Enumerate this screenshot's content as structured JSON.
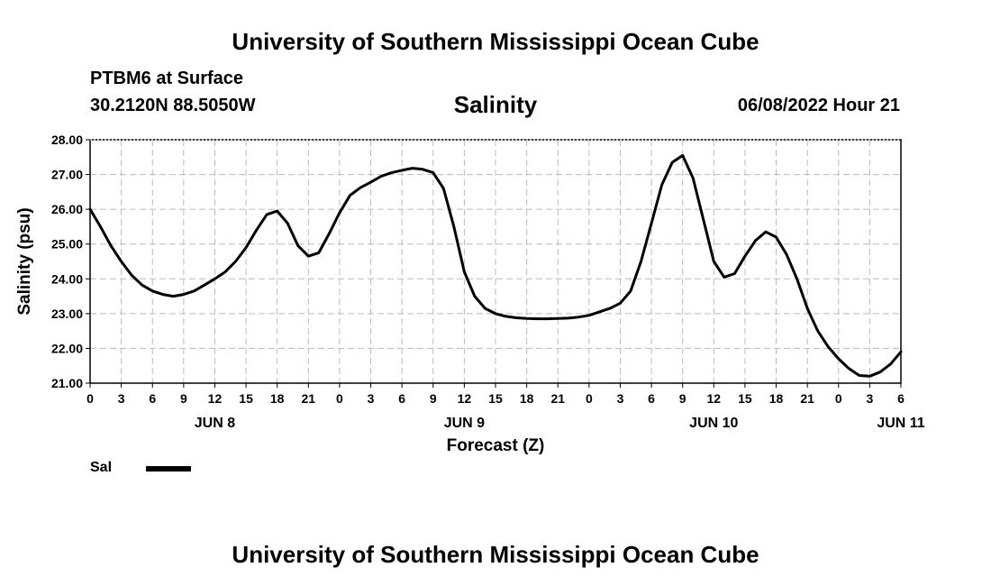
{
  "header": {
    "title": "University of Southern Mississippi Ocean Cube",
    "station": "PTBM6 at Surface",
    "coords": "30.2120N  88.5050W",
    "datetime": "06/08/2022 Hour 21",
    "footer_title": "University of Southern Mississippi Ocean Cube"
  },
  "chart_data": {
    "type": "line",
    "title": "Salinity",
    "xlabel": "Forecast (Z)",
    "ylabel": "Salinity (psu)",
    "ylim": [
      21.0,
      28.0
    ],
    "xlim": [
      0,
      78
    ],
    "yticks": [
      "21.00",
      "22.00",
      "23.00",
      "24.00",
      "25.00",
      "26.00",
      "27.00",
      "28.00"
    ],
    "xticks": [
      "0",
      "3",
      "6",
      "9",
      "12",
      "15",
      "18",
      "21",
      "0",
      "3",
      "6",
      "9",
      "12",
      "15",
      "18",
      "21",
      "0",
      "3",
      "6",
      "9",
      "12",
      "15",
      "18",
      "21",
      "0",
      "3",
      "6"
    ],
    "day_labels": [
      {
        "label": "JUN 8",
        "at": 12
      },
      {
        "label": "JUN 9",
        "at": 36
      },
      {
        "label": "JUN 10",
        "at": 60
      },
      {
        "label": "JUN 11",
        "at": 78
      }
    ],
    "grid": true,
    "line_color": "#000000",
    "series": [
      {
        "name": "Sal",
        "x": [
          0,
          1,
          2,
          3,
          4,
          5,
          6,
          7,
          8,
          9,
          10,
          11,
          12,
          13,
          14,
          15,
          16,
          17,
          18,
          19,
          20,
          21,
          22,
          23,
          24,
          25,
          26,
          27,
          28,
          29,
          30,
          31,
          32,
          33,
          34,
          35,
          36,
          37,
          38,
          39,
          40,
          41,
          42,
          43,
          44,
          45,
          46,
          47,
          48,
          49,
          50,
          51,
          52,
          53,
          54,
          55,
          56,
          57,
          58,
          59,
          60,
          61,
          62,
          63,
          64,
          65,
          66,
          67,
          68,
          69,
          70,
          71,
          72,
          73,
          74,
          75,
          76,
          77,
          78
        ],
        "values": [
          26.0,
          25.5,
          24.95,
          24.5,
          24.1,
          23.82,
          23.65,
          23.55,
          23.5,
          23.55,
          23.65,
          23.82,
          24.0,
          24.2,
          24.5,
          24.9,
          25.4,
          25.85,
          25.95,
          25.6,
          24.95,
          24.65,
          24.75,
          25.3,
          25.9,
          26.4,
          26.62,
          26.78,
          26.95,
          27.05,
          27.12,
          27.18,
          27.15,
          27.05,
          26.6,
          25.5,
          24.2,
          23.5,
          23.15,
          23.0,
          22.92,
          22.88,
          22.86,
          22.85,
          22.85,
          22.86,
          22.87,
          22.9,
          22.95,
          23.05,
          23.15,
          23.3,
          23.65,
          24.5,
          25.6,
          26.7,
          27.35,
          27.55,
          26.9,
          25.7,
          24.5,
          24.05,
          24.15,
          24.65,
          25.1,
          25.35,
          25.2,
          24.7,
          24.0,
          23.15,
          22.5,
          22.05,
          21.7,
          21.42,
          21.22,
          21.2,
          21.32,
          21.55,
          21.9
        ]
      }
    ]
  }
}
